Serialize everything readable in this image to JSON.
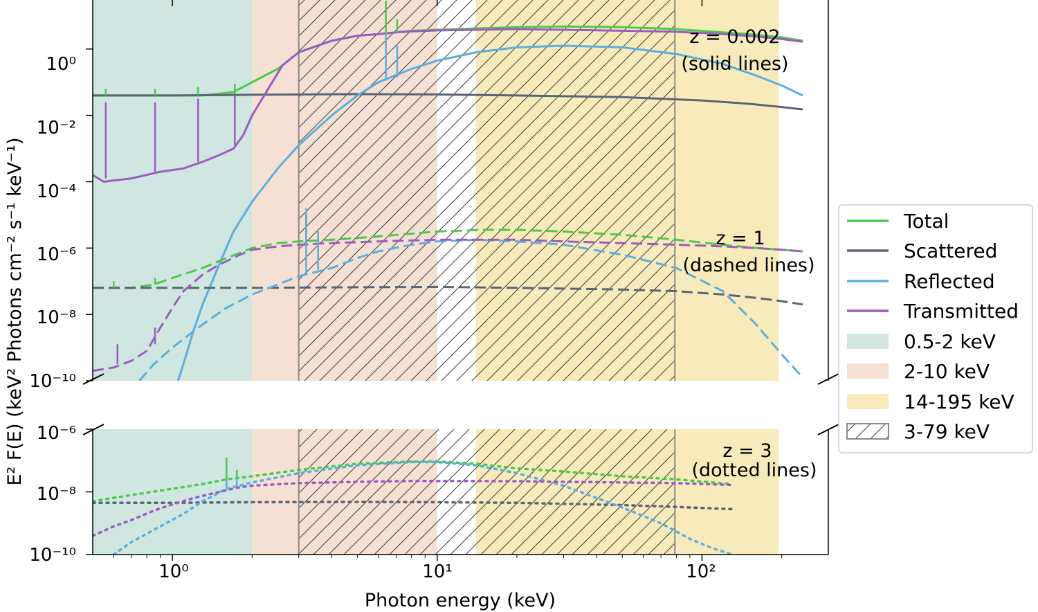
{
  "chart_data": {
    "type": "line",
    "title": "",
    "xlabel": "Photon energy (keV)",
    "ylabel": "E² F(E) (keV² Photons cm⁻² s⁻¹ keV⁻¹)",
    "xscale": "log",
    "yscale": "log",
    "xlim": [
      0.5,
      300
    ],
    "x_tick_labels": [
      "10⁰",
      "10¹",
      "10²"
    ],
    "panels": [
      {
        "name": "upper",
        "ylim": [
          1e-10,
          30
        ],
        "y_tick_labels": [
          "10⁻¹⁰",
          "10⁻⁸",
          "10⁻⁶",
          "10⁻⁴",
          "10⁻²",
          "10⁰"
        ],
        "y_tick_values": [
          -10,
          -8,
          -6,
          -4,
          -2,
          0
        ]
      },
      {
        "name": "lower",
        "ylim": [
          1e-10,
          1e-06
        ],
        "y_tick_labels": [
          "10⁻¹⁰",
          "10⁻⁸",
          "10⁻⁶"
        ],
        "y_tick_values": [
          -10,
          -8,
          -6
        ]
      }
    ],
    "bands": [
      {
        "label": "0.5-2 keV",
        "range": [
          0.5,
          2
        ],
        "color": "#cfe7e0",
        "style": "fill"
      },
      {
        "label": "2-10 keV",
        "range": [
          2,
          10
        ],
        "color": "#f5e1d4",
        "style": "fill"
      },
      {
        "label": "14-195 keV",
        "range": [
          14,
          195
        ],
        "color": "#f8ebbb",
        "style": "fill"
      },
      {
        "label": "3-79 keV",
        "range": [
          3,
          79
        ],
        "color": "#8a8a8a",
        "style": "hatch"
      }
    ],
    "annotations": [
      {
        "text": "z = 0.002",
        "sub": "(solid lines)"
      },
      {
        "text": "z = 1",
        "sub": "(dashed lines)"
      },
      {
        "text": "z = 3",
        "sub": "(dotted lines)"
      }
    ],
    "legend": {
      "position": "right",
      "entries": [
        "Total",
        "Scattered",
        "Reflected",
        "Transmitted",
        "0.5-2 keV",
        "2-10 keV",
        "14-195 keV",
        "3-79 keV"
      ]
    },
    "series_colors": {
      "Total": "#4cc94b",
      "Scattered": "#5a6472",
      "Reflected": "#5aaee0",
      "Transmitted": "#9a5cbf"
    },
    "series": [
      {
        "name": "Total",
        "z": "0.002",
        "panel": "upper",
        "dash": "solid",
        "x": [
          0.5,
          0.7,
          1,
          1.3,
          1.7,
          2,
          2.5,
          3,
          4,
          5,
          6,
          7,
          8,
          10,
          14,
          20,
          30,
          50,
          80,
          120,
          150,
          200,
          240
        ],
        "log10y": [
          -1.4,
          -1.4,
          -1.4,
          -1.4,
          -1.3,
          -1.0,
          -0.6,
          -0.1,
          0.25,
          0.4,
          0.45,
          0.5,
          0.55,
          0.58,
          0.62,
          0.66,
          0.68,
          0.66,
          0.6,
          0.5,
          0.45,
          0.35,
          0.25
        ]
      },
      {
        "name": "Scattered",
        "z": "0.002",
        "panel": "upper",
        "dash": "solid",
        "x": [
          0.5,
          1,
          2,
          5,
          10,
          20,
          50,
          100,
          150,
          200,
          240
        ],
        "log10y": [
          -1.4,
          -1.4,
          -1.38,
          -1.36,
          -1.37,
          -1.4,
          -1.45,
          -1.55,
          -1.65,
          -1.75,
          -1.82
        ]
      },
      {
        "name": "Reflected",
        "z": "0.002",
        "panel": "upper",
        "dash": "solid",
        "x": [
          1.05,
          1.1,
          1.2,
          1.3,
          1.5,
          1.7,
          2,
          2.5,
          3,
          4,
          5,
          6,
          8,
          10,
          14,
          20,
          30,
          50,
          80,
          120,
          160,
          200,
          240
        ],
        "log10y": [
          -10,
          -9.5,
          -8.5,
          -7.7,
          -6.5,
          -5.5,
          -4.6,
          -3.6,
          -2.9,
          -2.0,
          -1.4,
          -1.0,
          -0.6,
          -0.35,
          -0.1,
          0.05,
          0.1,
          0.05,
          -0.15,
          -0.45,
          -0.8,
          -1.1,
          -1.4
        ]
      },
      {
        "name": "Transmitted",
        "z": "0.002",
        "panel": "upper",
        "dash": "solid",
        "x": [
          0.5,
          0.55,
          0.7,
          0.9,
          1.1,
          1.3,
          1.5,
          1.7,
          1.85,
          2,
          2.3,
          2.6,
          3,
          4,
          5,
          6,
          7,
          8,
          10,
          14,
          20,
          30,
          50,
          80,
          120,
          160,
          200,
          240
        ],
        "log10y": [
          -3.8,
          -4.0,
          -3.9,
          -3.7,
          -3.6,
          -3.4,
          -3.2,
          -3.0,
          -2.6,
          -2.0,
          -1.2,
          -0.5,
          -0.1,
          0.25,
          0.4,
          0.45,
          0.5,
          0.53,
          0.56,
          0.58,
          0.6,
          0.58,
          0.55,
          0.52,
          0.45,
          0.38,
          0.3,
          0.22
        ]
      },
      {
        "name": "Total",
        "z": "1",
        "panel": "upper",
        "dash": "dashed",
        "x": [
          0.5,
          0.7,
          0.85,
          1,
          1.3,
          1.6,
          2,
          2.5,
          3,
          4,
          6,
          10,
          15,
          20,
          30,
          50,
          80,
          120,
          160,
          200,
          240
        ],
        "log10y": [
          -7.2,
          -7.2,
          -7.1,
          -6.9,
          -6.6,
          -6.3,
          -6.0,
          -5.85,
          -5.8,
          -5.75,
          -5.65,
          -5.5,
          -5.45,
          -5.45,
          -5.5,
          -5.6,
          -5.75,
          -5.9,
          -6.0,
          -6.05,
          -6.1
        ]
      },
      {
        "name": "Scattered",
        "z": "1",
        "panel": "upper",
        "dash": "dashed",
        "x": [
          0.5,
          1,
          2,
          5,
          10,
          20,
          50,
          80,
          120,
          160,
          200,
          240
        ],
        "log10y": [
          -7.2,
          -7.2,
          -7.2,
          -7.18,
          -7.17,
          -7.2,
          -7.25,
          -7.3,
          -7.4,
          -7.5,
          -7.6,
          -7.7
        ]
      },
      {
        "name": "Reflected",
        "z": "1",
        "panel": "upper",
        "dash": "dashed",
        "x": [
          0.75,
          0.85,
          1,
          1.3,
          1.6,
          2,
          2.5,
          3,
          4,
          5,
          6,
          8,
          10,
          14,
          20,
          30,
          50,
          80,
          120,
          160,
          200,
          240
        ],
        "log10y": [
          -10,
          -9.5,
          -9.0,
          -8.3,
          -7.8,
          -7.4,
          -7.1,
          -6.85,
          -6.6,
          -6.3,
          -6.1,
          -5.9,
          -5.8,
          -5.75,
          -5.8,
          -5.9,
          -6.2,
          -6.6,
          -7.3,
          -8.3,
          -9.2,
          -9.9
        ]
      },
      {
        "name": "Transmitted",
        "z": "1",
        "panel": "upper",
        "dash": "dashed",
        "x": [
          0.5,
          0.6,
          0.7,
          0.8,
          0.9,
          1,
          1.1,
          1.3,
          1.5,
          1.8,
          2,
          2.5,
          3,
          4,
          6,
          10,
          15,
          20,
          30,
          50,
          80,
          120,
          160,
          200,
          240
        ],
        "log10y": [
          -9.7,
          -9.6,
          -9.4,
          -9.1,
          -8.4,
          -7.8,
          -7.3,
          -6.8,
          -6.5,
          -6.2,
          -6.05,
          -5.95,
          -5.9,
          -5.85,
          -5.8,
          -5.75,
          -5.75,
          -5.75,
          -5.8,
          -5.85,
          -5.9,
          -5.95,
          -6.0,
          -6.05,
          -6.1
        ]
      },
      {
        "name": "Total",
        "z": "3",
        "panel": "lower",
        "dash": "dotted",
        "x": [
          0.5,
          0.7,
          1,
          1.3,
          1.6,
          2,
          3,
          5,
          8,
          10,
          14,
          20,
          30,
          50,
          80,
          110,
          130
        ],
        "log10y": [
          -8.3,
          -8.1,
          -7.9,
          -7.75,
          -7.6,
          -7.5,
          -7.3,
          -7.1,
          -7.03,
          -7.03,
          -7.1,
          -7.25,
          -7.35,
          -7.5,
          -7.6,
          -7.7,
          -7.75
        ]
      },
      {
        "name": "Scattered",
        "z": "3",
        "panel": "lower",
        "dash": "dotted",
        "x": [
          0.5,
          1,
          2,
          5,
          10,
          20,
          50,
          80,
          130
        ],
        "log10y": [
          -8.35,
          -8.35,
          -8.33,
          -8.32,
          -8.33,
          -8.35,
          -8.42,
          -8.48,
          -8.55
        ]
      },
      {
        "name": "Reflected",
        "z": "3",
        "panel": "lower",
        "dash": "dotted",
        "x": [
          0.6,
          0.7,
          0.9,
          1.1,
          1.3,
          1.6,
          2,
          3,
          5,
          8,
          10,
          14,
          20,
          30,
          50,
          70,
          90,
          110,
          130
        ],
        "log10y": [
          -10,
          -9.6,
          -9.1,
          -8.7,
          -8.3,
          -7.9,
          -7.7,
          -7.4,
          -7.15,
          -7.05,
          -7.05,
          -7.15,
          -7.4,
          -7.8,
          -8.5,
          -9.0,
          -9.5,
          -9.8,
          -10
        ]
      },
      {
        "name": "Transmitted",
        "z": "3",
        "panel": "lower",
        "dash": "dotted",
        "x": [
          0.5,
          0.6,
          0.7,
          0.85,
          1,
          1.2,
          1.5,
          1.8,
          2,
          3,
          5,
          8,
          12,
          20,
          30,
          50,
          80,
          130
        ],
        "log10y": [
          -9.4,
          -9.1,
          -8.9,
          -8.6,
          -8.4,
          -8.2,
          -8.0,
          -7.85,
          -7.8,
          -7.72,
          -7.68,
          -7.65,
          -7.65,
          -7.66,
          -7.68,
          -7.7,
          -7.72,
          -7.78
        ]
      }
    ],
    "spikes": [
      {
        "name": "Total",
        "z": "0.002",
        "x": [
          0.56,
          0.86,
          1.25,
          1.72,
          6.4,
          7.06
        ],
        "log10y_base": [
          -1.4,
          -1.4,
          -1.4,
          -1.35,
          0.45,
          0.5
        ],
        "log10y_peak": [
          -1.2,
          -1.2,
          -1.15,
          -1.05,
          1.45,
          0.9
        ]
      },
      {
        "name": "Reflected",
        "z": "0.002",
        "x": [
          6.4,
          7.06
        ],
        "log10y_base": [
          -0.95,
          -0.85
        ],
        "log10y_peak": [
          0.45,
          0.1
        ]
      },
      {
        "name": "Transmitted",
        "z": "0.002",
        "x": [
          0.56,
          0.86,
          1.25,
          1.72
        ],
        "log10y_base": [
          -3.9,
          -3.7,
          -3.4,
          -2.9
        ],
        "log10y_peak": [
          -1.6,
          -1.6,
          -1.5,
          -1.4
        ]
      },
      {
        "name": "Transmitted",
        "z": "1",
        "x": [
          0.62,
          0.86,
          3.2,
          3.55
        ],
        "log10y_base": [
          -9.5,
          -8.9,
          -5.85,
          -5.85
        ],
        "log10y_peak": [
          -8.9,
          -8.4,
          -5.0,
          -5.5
        ]
      },
      {
        "name": "Reflected",
        "z": "1",
        "x": [
          3.2,
          3.55
        ],
        "log10y_base": [
          -6.75,
          -6.65
        ],
        "log10y_peak": [
          -4.8,
          -5.5
        ]
      },
      {
        "name": "Total",
        "z": "1",
        "x": [
          0.6,
          0.86
        ],
        "log10y_base": [
          -7.2,
          -7.1
        ],
        "log10y_peak": [
          -7.0,
          -6.9
        ]
      },
      {
        "name": "Reflected",
        "z": "3",
        "x": [
          1.6,
          1.75
        ],
        "log10y_base": [
          -7.9,
          -7.8
        ],
        "log10y_peak": [
          -6.9,
          -7.3
        ]
      },
      {
        "name": "Total",
        "z": "3",
        "x": [
          1.6,
          1.75
        ],
        "log10y_base": [
          -7.6,
          -7.55
        ],
        "log10y_peak": [
          -6.9,
          -7.3
        ]
      }
    ]
  }
}
